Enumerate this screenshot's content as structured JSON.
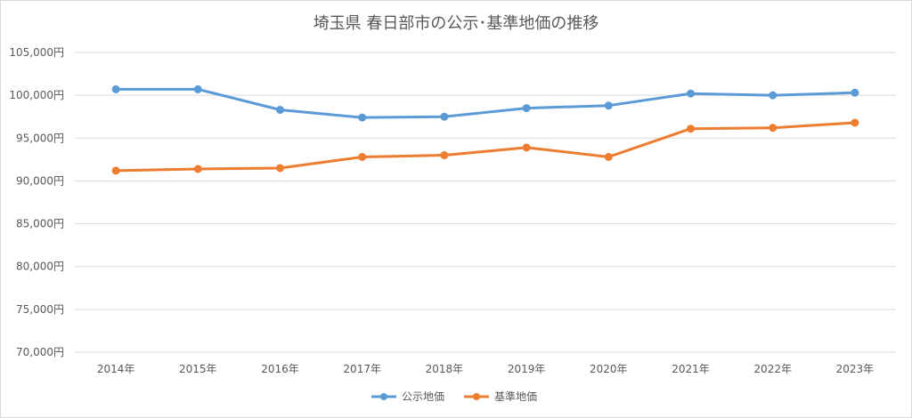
{
  "chart_data": {
    "type": "line",
    "title": "埼玉県 春日部市の公示･基準地価の推移",
    "categories": [
      "2014年",
      "2015年",
      "2016年",
      "2017年",
      "2018年",
      "2019年",
      "2020年",
      "2021年",
      "2022年",
      "2023年"
    ],
    "ylim": [
      70000,
      105000
    ],
    "yticks": [
      70000,
      75000,
      80000,
      85000,
      90000,
      95000,
      100000,
      105000
    ],
    "ytick_labels": [
      "70,000円",
      "75,000円",
      "80,000円",
      "85,000円",
      "90,000円",
      "95,000円",
      "100,000円",
      "105,000円"
    ],
    "grid": true,
    "legend_position": "bottom",
    "series": [
      {
        "name": "公示地価",
        "color": "#5b9bd5",
        "values": [
          100700,
          100700,
          98300,
          97400,
          97500,
          98500,
          98800,
          100200,
          100000,
          100300
        ]
      },
      {
        "name": "基準地価",
        "color": "#ed7d31",
        "values": [
          91200,
          91400,
          91500,
          92800,
          93000,
          93900,
          92800,
          96100,
          96200,
          96800
        ]
      }
    ]
  }
}
